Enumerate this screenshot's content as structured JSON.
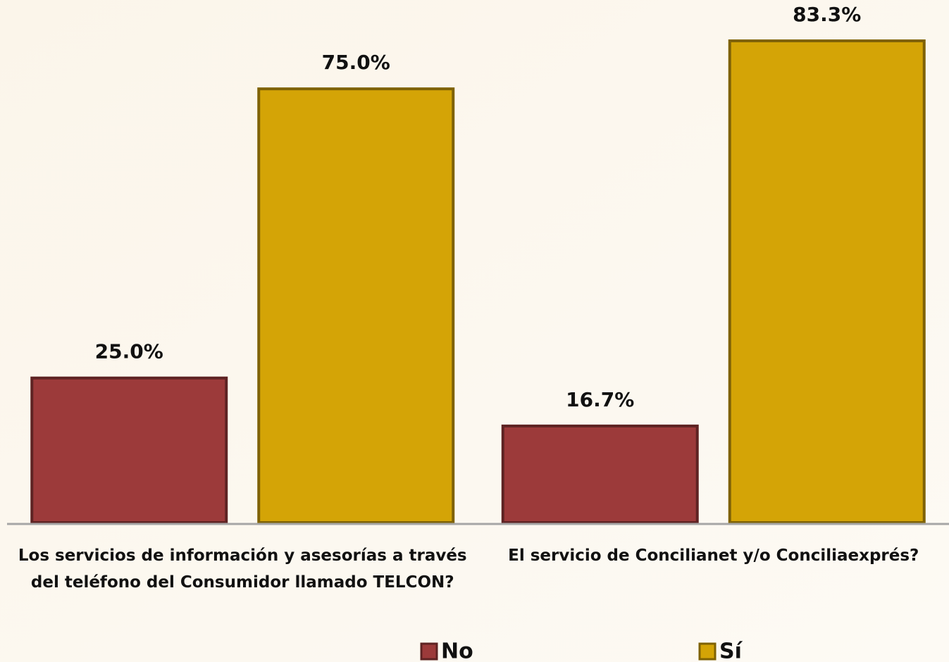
{
  "chart_data": {
    "type": "bar",
    "categories": [
      "Los servicios de información  y asesorías a través\ndel teléfono del Consumidor llamado TELCON?",
      "El servicio de Concilianet y/o Conciliaexprés?"
    ],
    "series": [
      {
        "name": "No",
        "color": "#9c3a3a",
        "values": [
          25.0,
          16.7
        ],
        "value_labels": [
          "25.0%",
          "16.7%"
        ]
      },
      {
        "name": "Sí",
        "color": "#d4a406",
        "values": [
          75.0,
          83.3
        ],
        "value_labels": [
          "75.0%",
          "83.3%"
        ]
      }
    ],
    "ylim": [
      0,
      90
    ],
    "legend": "bottom"
  }
}
